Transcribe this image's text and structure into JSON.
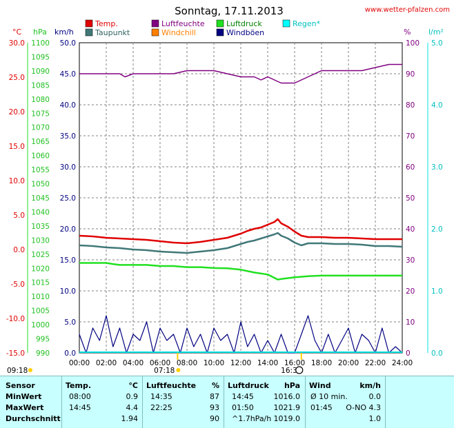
{
  "header": {
    "title": "Sonntag, 17.11.2013",
    "site": "www.wetter-pfalzen.com"
  },
  "colors": {
    "temp": "#e00000",
    "dewpoint": "#407878",
    "humidity": "#800080",
    "windchill": "#ff8000",
    "pressure": "#20e020",
    "gust": "#000080",
    "rain": "#00e0e0",
    "grid": "#808080",
    "table_bg": "#c8ffff"
  },
  "chart_data": {
    "type": "line",
    "legend": [
      {
        "name": "Temp.",
        "color": "#e00000"
      },
      {
        "name": "Luftfeuchte",
        "color": "#800080"
      },
      {
        "name": "Luftdruck",
        "color": "#20e020"
      },
      {
        "name": "Regen*",
        "color": "#00ffff"
      },
      {
        "name": "Taupunkt",
        "color": "#407878"
      },
      {
        "name": "Windchill",
        "color": "#ff8000"
      },
      {
        "name": "Windböen",
        "color": "#000080"
      }
    ],
    "axes": {
      "temp": {
        "unit": "°C",
        "min": -15,
        "max": 30,
        "ticks": [
          "30.0",
          "25.0",
          "20.0",
          "15.0",
          "10.0",
          "5.0",
          "0.0",
          "-5.0",
          "-10.0",
          "-15.0"
        ]
      },
      "pressure": {
        "unit": "hPa",
        "min": 990,
        "max": 1100,
        "ticks": [
          "1100",
          "1095",
          "1090",
          "1085",
          "1080",
          "1075",
          "1070",
          "1065",
          "1060",
          "1055",
          "1050",
          "1045",
          "1040",
          "1035",
          "1030",
          "1025",
          "1020",
          "1015",
          "1010",
          "1005",
          "1000",
          "995",
          "990"
        ]
      },
      "wind": {
        "unit": "km/h",
        "min": 0,
        "max": 50,
        "ticks": [
          "50.0",
          "45.0",
          "40.0",
          "35.0",
          "30.0",
          "25.0",
          "20.0",
          "15.0",
          "10.0",
          "5.0",
          "0.0"
        ]
      },
      "humidity": {
        "unit": "%",
        "min": 0,
        "max": 100,
        "ticks": [
          "100",
          "90",
          "80",
          "70",
          "60",
          "50",
          "40",
          "30",
          "20",
          "10",
          "0"
        ]
      },
      "rain": {
        "unit": "l/m²",
        "min": 0,
        "max": 5,
        "ticks": [
          "5.0",
          "4.0",
          "3.0",
          "2.0",
          "1.0",
          "0.0"
        ]
      },
      "x_ticks": [
        "00:00",
        "02:00",
        "04:00",
        "06:00",
        "08:00",
        "10:00",
        "12:00",
        "14:00",
        "16:00",
        "18:00",
        "20:00",
        "22:00",
        "24:00"
      ]
    },
    "sun": {
      "sunrise": "07:18",
      "sunset": "16:3",
      "prev_mark": "09:18"
    },
    "series": [
      {
        "name": "Temp.",
        "axis": "temp",
        "x": [
          0,
          1,
          2,
          3,
          4,
          5,
          6,
          7,
          8,
          9,
          10,
          11,
          12,
          12.5,
          13,
          13.5,
          14,
          14.5,
          14.75,
          15,
          15.5,
          16,
          16.5,
          17,
          18,
          19,
          20,
          21,
          22,
          23,
          24
        ],
        "y": [
          2.0,
          1.9,
          1.7,
          1.6,
          1.5,
          1.4,
          1.2,
          1.0,
          0.9,
          1.1,
          1.4,
          1.7,
          2.3,
          2.7,
          3.0,
          3.2,
          3.6,
          4.0,
          4.4,
          3.8,
          3.3,
          2.6,
          2.0,
          1.8,
          1.8,
          1.7,
          1.7,
          1.6,
          1.5,
          1.5,
          1.5
        ]
      },
      {
        "name": "Taupunkt",
        "axis": "temp",
        "x": [
          0,
          1,
          2,
          3,
          4,
          5,
          6,
          7,
          8,
          9,
          10,
          11,
          12,
          12.5,
          13,
          13.5,
          14,
          14.5,
          14.75,
          15,
          15.5,
          16,
          16.5,
          17,
          18,
          19,
          20,
          21,
          22,
          23,
          24
        ],
        "y": [
          0.6,
          0.5,
          0.3,
          0.2,
          0.0,
          -0.1,
          -0.3,
          -0.4,
          -0.5,
          -0.3,
          -0.1,
          0.2,
          0.8,
          1.1,
          1.3,
          1.6,
          1.9,
          2.2,
          2.4,
          2.0,
          1.6,
          1.0,
          0.6,
          0.9,
          0.9,
          0.8,
          0.8,
          0.7,
          0.5,
          0.5,
          0.4
        ]
      },
      {
        "name": "Luftfeuchte",
        "axis": "humidity",
        "x": [
          0,
          3,
          3.4,
          4,
          6,
          7,
          8,
          9,
          10,
          11,
          12,
          13,
          13.5,
          14,
          14.5,
          15,
          15.2,
          16,
          17,
          18,
          20,
          21,
          22,
          23,
          24
        ],
        "y": [
          90,
          90,
          89,
          90,
          90,
          90,
          91,
          91,
          91,
          90,
          89,
          89,
          88,
          89,
          88,
          87,
          87,
          87,
          89,
          91,
          91,
          91,
          92,
          93,
          93
        ]
      },
      {
        "name": "Luftdruck",
        "axis": "pressure",
        "x": [
          0,
          2,
          2.5,
          3,
          5,
          6,
          7,
          8,
          9,
          10,
          11,
          12,
          13,
          14,
          14.75,
          15,
          16,
          17,
          18,
          20,
          22,
          24
        ],
        "y": [
          1021.9,
          1021.9,
          1021.5,
          1021.2,
          1021.2,
          1020.8,
          1020.8,
          1020.4,
          1020.4,
          1020.1,
          1020.0,
          1019.5,
          1018.5,
          1017.8,
          1016.0,
          1016.2,
          1016.8,
          1017.2,
          1017.4,
          1017.4,
          1017.4,
          1017.4
        ]
      },
      {
        "name": "Windböen",
        "axis": "wind",
        "x": [
          0,
          0.5,
          1,
          1.5,
          2,
          2.5,
          3,
          3.5,
          4,
          4.5,
          5,
          5.5,
          6,
          6.5,
          7,
          7.5,
          8,
          8.5,
          9,
          9.5,
          10,
          10.5,
          11,
          11.5,
          12,
          12.5,
          13,
          13.5,
          14,
          14.5,
          15,
          15.5,
          16,
          16.5,
          17,
          17.5,
          18,
          18.5,
          19,
          19.5,
          20,
          20.5,
          21,
          21.5,
          22,
          22.5,
          23,
          23.5,
          24
        ],
        "y": [
          3,
          0,
          4,
          2,
          6,
          1,
          4,
          0,
          3,
          2,
          5,
          0,
          4,
          2,
          3,
          0,
          4,
          1,
          3,
          0,
          4,
          2,
          3,
          0,
          5,
          1,
          3,
          0,
          2,
          0,
          3,
          0,
          0,
          3,
          6,
          2,
          0,
          3,
          0,
          2,
          4,
          0,
          3,
          2,
          0,
          4,
          0,
          1,
          0
        ]
      }
    ]
  },
  "stats": {
    "headers": {
      "sensor": "Sensor",
      "temp": "Temp.",
      "temp_unit": "°C",
      "hum": "Luftfeuchte",
      "hum_unit": "%",
      "press": "Luftdruck",
      "press_unit": "hPa",
      "wind": "Wind",
      "wind_unit": "km/h"
    },
    "rows": [
      {
        "label": "MinWert",
        "t_time": "08:00",
        "t_val": "0.9",
        "h_time": "14:35",
        "h_val": "87",
        "p_time": "14:45",
        "p_val": "1016.0",
        "w_time": "Ø 10 min.",
        "w_val": "0.0"
      },
      {
        "label": "MaxWert",
        "t_time": "14:45",
        "t_val": "4.4",
        "h_time": "22:25",
        "h_val": "93",
        "p_time": "01:50",
        "p_val": "1021.9",
        "w_time": "01:45",
        "w_val": "O-NO 4.3"
      },
      {
        "label": "Durchschnitt",
        "t_time": "",
        "t_val": "1.94",
        "h_time": "",
        "h_val": "90",
        "p_time": "^1.7hPa/h",
        "p_val": "1019.0",
        "w_time": "",
        "w_val": "1.0"
      }
    ]
  }
}
